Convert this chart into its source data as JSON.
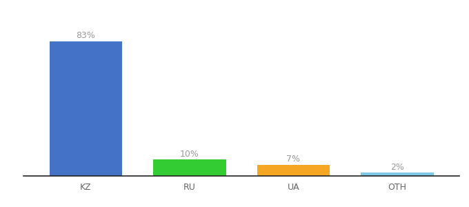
{
  "categories": [
    "KZ",
    "RU",
    "UA",
    "OTH"
  ],
  "values": [
    83,
    10,
    7,
    2
  ],
  "labels": [
    "83%",
    "10%",
    "7%",
    "2%"
  ],
  "bar_colors": [
    "#4472c4",
    "#33cc33",
    "#f5a623",
    "#7ec8e3"
  ],
  "background_color": "#ffffff",
  "ylim": [
    0,
    93
  ],
  "bar_width": 0.7,
  "label_fontsize": 9,
  "tick_fontsize": 9,
  "label_color": "#999999",
  "tick_color": "#666666",
  "spine_color": "#222222"
}
